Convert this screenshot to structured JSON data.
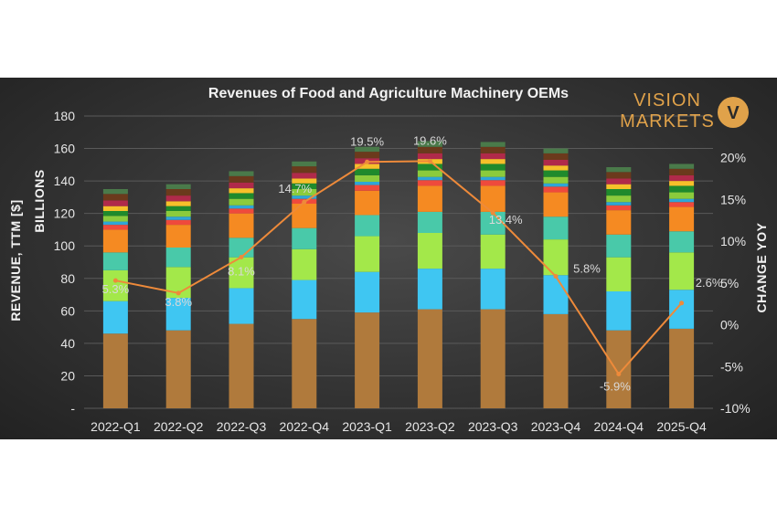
{
  "chart_data": {
    "type": "bar",
    "title": "Revenues of Food and Agriculture Machinery OEMs",
    "ylabel_left_line1": "BILLIONS",
    "ylabel_left_line2": "REVENUE, TTM [$]",
    "ylabel_right": "CHANGE YOY",
    "categories": [
      "2022-Q1",
      "2022-Q2",
      "2022-Q3",
      "2022-Q4",
      "2023-Q1",
      "2023-Q2",
      "2023-Q3",
      "2023-Q4",
      "2024-Q4",
      "2025-Q4"
    ],
    "ylim": [
      0,
      180
    ],
    "yticks": [
      0,
      20,
      40,
      60,
      80,
      100,
      120,
      140,
      160,
      180
    ],
    "ytick_labels": [
      "-",
      "20",
      "40",
      "60",
      "80",
      "100",
      "120",
      "140",
      "160",
      "180"
    ],
    "y2lim": [
      -10,
      25
    ],
    "y2ticks": [
      -10,
      -5,
      0,
      5,
      10,
      15,
      20
    ],
    "y2tick_labels": [
      "-10%",
      "-5%",
      "0%",
      "5%",
      "10%",
      "15%",
      "20%"
    ],
    "stacked": true,
    "series_colors": [
      "#b07a3c",
      "#3fc6f2",
      "#a3e84a",
      "#49c9a9",
      "#f58a22",
      "#ef4a3c",
      "#2ea6d6",
      "#8bcb3c",
      "#1f8a2c",
      "#f6c02a",
      "#b02a4a",
      "#6b3a1c",
      "#4a7a4a"
    ],
    "segments": [
      [
        46,
        20,
        19,
        11,
        14,
        3.0,
        2.0,
        3.5,
        3.0,
        3.0,
        3.5,
        4.0,
        3.0
      ],
      [
        48,
        20,
        19,
        12,
        14,
        3.0,
        2.0,
        3.5,
        3.0,
        3.0,
        3.5,
        4.0,
        3.0
      ],
      [
        52,
        22,
        19,
        12,
        15,
        3.0,
        2.0,
        4.0,
        3.5,
        3.0,
        3.5,
        4.0,
        3.0
      ],
      [
        55,
        24,
        19,
        13,
        15,
        3.0,
        2.0,
        4.0,
        3.5,
        3.0,
        3.5,
        4.0,
        3.0
      ],
      [
        59,
        25,
        22,
        13,
        15,
        3.5,
        2.0,
        4.0,
        4.0,
        3.0,
        3.5,
        4.0,
        3.0
      ],
      [
        61,
        25,
        22,
        13,
        16,
        3.5,
        2.0,
        4.0,
        4.0,
        3.0,
        3.5,
        4.0,
        3.5
      ],
      [
        61,
        25,
        21,
        14,
        16,
        3.5,
        2.0,
        4.0,
        4.0,
        3.0,
        3.5,
        4.0,
        3.0
      ],
      [
        58,
        24,
        22,
        14,
        15,
        3.5,
        2.0,
        4.0,
        4.0,
        3.0,
        3.5,
        4.0,
        3.0
      ],
      [
        48,
        24,
        21,
        14,
        15,
        3.0,
        2.0,
        4.0,
        4.0,
        3.0,
        3.5,
        4.0,
        3.0
      ],
      [
        49,
        24,
        23,
        13,
        15,
        3.0,
        2.0,
        4.0,
        4.0,
        3.0,
        3.5,
        4.0,
        3.0
      ]
    ],
    "yoy_change": [
      5.3,
      3.8,
      8.1,
      14.7,
      19.5,
      19.6,
      13.4,
      5.8,
      -5.9,
      2.6
    ],
    "yoy_labels": [
      "5.3%",
      "3.8%",
      "8.1%",
      "14.7%",
      "19.5%",
      "19.6%",
      "13.4%",
      "5.8%",
      "-5.9%",
      "2.6%"
    ],
    "line_color": "#ee8a3a",
    "grid": true
  },
  "logo": {
    "line1": "VISION",
    "line2": "MARKETS",
    "mark": "V",
    "color": "#e0a24a"
  }
}
